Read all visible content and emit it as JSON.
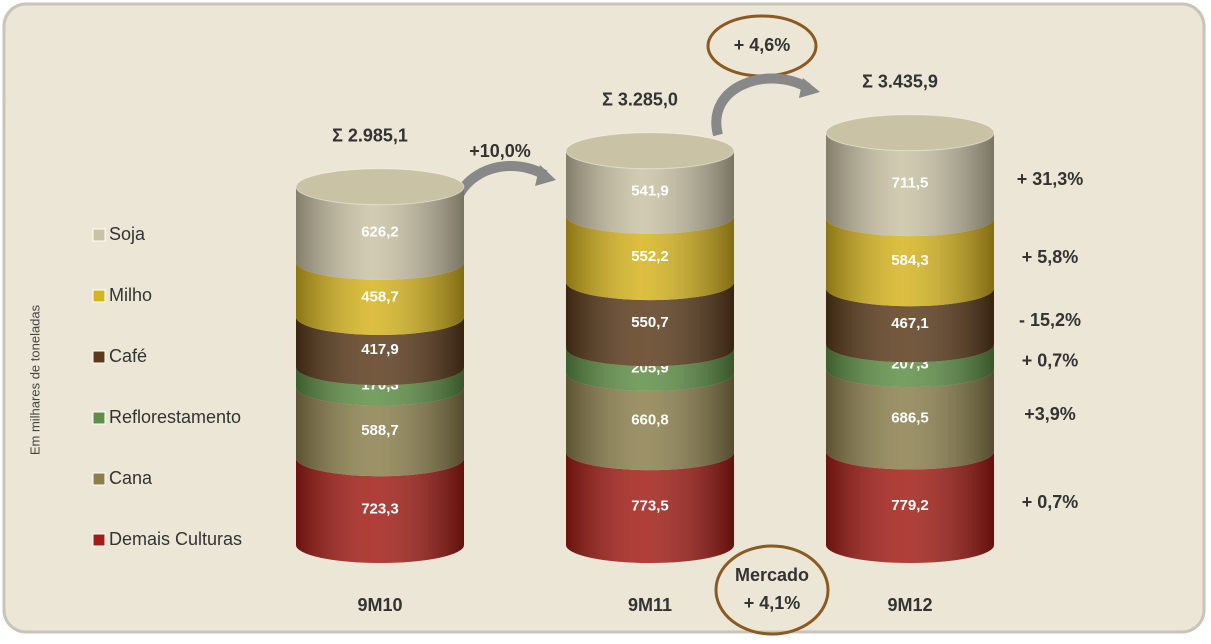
{
  "chart_data": {
    "type": "stacked-cylinder",
    "y_label": "Em milhares de toneladas",
    "categories": [
      "9M10",
      "9M11",
      "9M12"
    ],
    "series": [
      {
        "name": "Demais Culturas",
        "color": "#a31c15",
        "values": [
          723.3,
          773.5,
          779.2
        ],
        "value_labels": [
          "723,3",
          "773,5",
          "779,2"
        ],
        "change": "+ 0,7%"
      },
      {
        "name": "Cana",
        "color": "#8c7f4c",
        "values": [
          588.7,
          660.8,
          686.5
        ],
        "value_labels": [
          "588,7",
          "660,8",
          "686,5"
        ],
        "change": "+3,9%"
      },
      {
        "name": "Reflorestamento",
        "color": "#5e8f45",
        "values": [
          170.3,
          205.9,
          207.3
        ],
        "value_labels": [
          "170,3",
          "205,9",
          "207,3"
        ],
        "change": "+ 0,7%"
      },
      {
        "name": "Café",
        "color": "#5b3b1b",
        "values": [
          417.9,
          550.7,
          467.1
        ],
        "value_labels": [
          "417,9",
          "550,7",
          "467,1"
        ],
        "change": "- 15,2%"
      },
      {
        "name": "Milho",
        "color": "#d6b41e",
        "values": [
          458.7,
          552.2,
          584.3
        ],
        "value_labels": [
          "458,7",
          "552,2",
          "584,3"
        ],
        "change": "+ 5,8%"
      },
      {
        "name": "Soja",
        "color": "#c9c2a4",
        "values": [
          626.2,
          541.9,
          711.5
        ],
        "value_labels": [
          "626,2",
          "541,9",
          "711,5"
        ],
        "change": "+ 31,3%"
      }
    ],
    "totals": [
      "Σ 2.985,1",
      "Σ  3.285,0",
      "Σ 3.435,9"
    ],
    "growth": [
      "+10,0%",
      "+ 4,6%"
    ],
    "market": [
      "Mercado",
      "+ 4,1%"
    ]
  }
}
